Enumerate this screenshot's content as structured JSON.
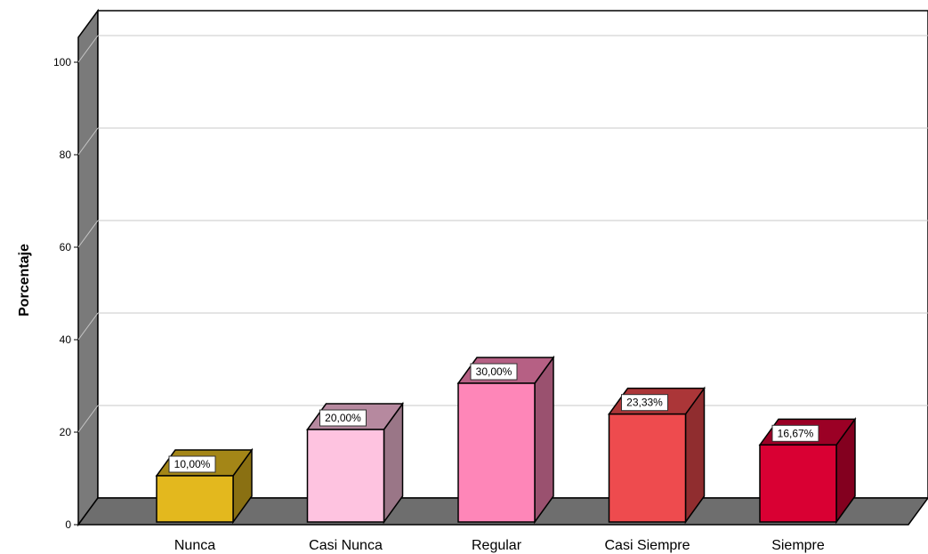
{
  "chart_data": {
    "type": "bar",
    "style": "3d",
    "categories": [
      "Nunca",
      "Casi Nunca",
      "Regular",
      "Casi Siempre",
      "Siempre"
    ],
    "values": [
      10.0,
      20.0,
      30.0,
      23.33,
      16.67
    ],
    "data_labels": [
      "10,00%",
      "20,00%",
      "30,00%",
      "23,33%",
      "16,67%"
    ],
    "ylabel": "Porcentaje",
    "ylim": [
      0,
      100
    ],
    "yticks": [
      "0",
      "20",
      "40",
      "60",
      "80",
      "100"
    ],
    "grid": true,
    "legend": "none",
    "colors": {
      "bars": [
        {
          "front": "#E3B81E",
          "side": "#8A7012",
          "top": "#A48617"
        },
        {
          "front": "#FEC3E0",
          "side": "#9A7687",
          "top": "#B6899F"
        },
        {
          "front": "#FE86B8",
          "side": "#9A516F",
          "top": "#B66084"
        },
        {
          "front": "#EE4B4E",
          "side": "#902D2F",
          "top": "#AB3638"
        },
        {
          "front": "#D90033",
          "side": "#83001F",
          "top": "#9B0025"
        }
      ],
      "wall": "#ffffff",
      "wall_side": "#7A7A7A",
      "floor": "#6E6E6E",
      "grid": "#C8C8C8",
      "outline": "#000000"
    }
  }
}
